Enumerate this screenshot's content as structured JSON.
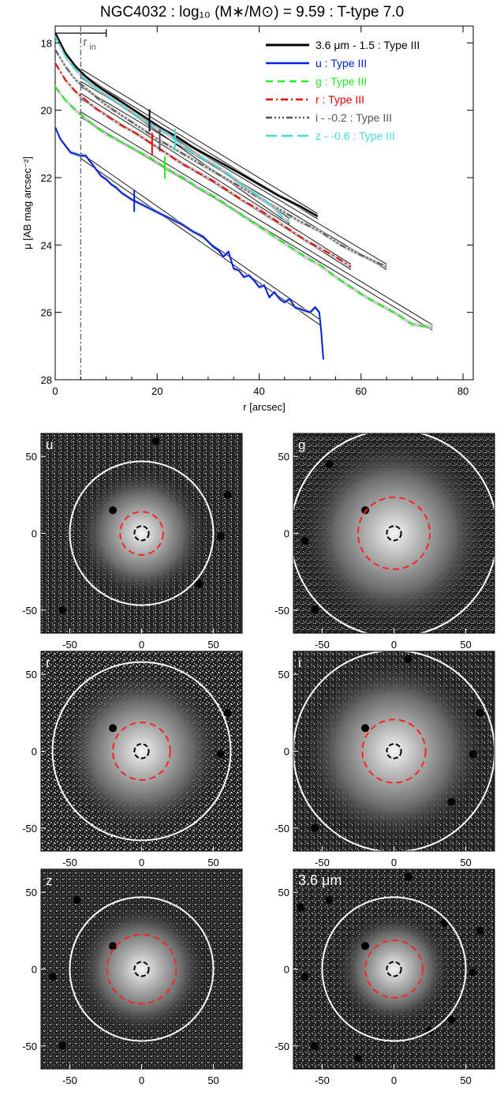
{
  "page_title": "NGC4032 : log₁₀ (M∗/M⊙) = 9.59 : T-type 7.0",
  "chart_data": [
    {
      "type": "line",
      "xlabel": "r [arcsec]",
      "ylabel": "μ [AB mag arcsec⁻²]",
      "xlim": [
        0,
        82
      ],
      "ylim": [
        28,
        17.5
      ],
      "y_inverted": true,
      "xticks": [
        0,
        20,
        40,
        60,
        80
      ],
      "yticks": [
        18,
        20,
        22,
        24,
        26,
        28
      ],
      "grid": false,
      "legend_position": "top-right",
      "r_in_label": "r",
      "r_in_subscript": "in",
      "r_in": 5,
      "series": [
        {
          "name": "3.6 μm - 1.5 : Type III",
          "color": "#000000",
          "dash": "solid",
          "x": [
            0,
            2,
            4,
            6,
            8,
            10,
            12,
            15,
            18,
            21,
            24,
            27,
            30,
            33,
            36,
            40,
            44,
            48,
            51.5
          ],
          "y": [
            17.7,
            18.3,
            18.7,
            19.0,
            19.25,
            19.45,
            19.65,
            19.95,
            20.25,
            20.55,
            20.8,
            21.1,
            21.35,
            21.6,
            21.85,
            22.2,
            22.55,
            22.85,
            23.15
          ],
          "break_x": 18.5,
          "fit_x": [
            5,
            51.5
          ]
        },
        {
          "name": "u : Type III",
          "color": "#0022dd",
          "dash": "solid",
          "x": [
            0,
            1,
            2,
            3,
            4,
            5,
            6,
            7,
            8,
            9,
            10,
            11,
            12,
            13,
            14,
            15,
            17,
            19,
            21,
            23,
            25,
            27,
            29,
            30,
            31,
            32,
            33,
            34,
            35,
            36,
            37,
            38,
            39,
            40,
            41,
            42,
            43,
            44,
            45,
            46,
            47,
            48,
            49,
            50,
            51,
            51.8,
            52.2,
            52.6
          ],
          "y": [
            20.5,
            20.85,
            21.05,
            21.25,
            21.3,
            21.35,
            21.35,
            21.55,
            21.75,
            21.95,
            22.05,
            22.2,
            22.3,
            22.45,
            22.55,
            22.65,
            22.8,
            22.95,
            23.1,
            23.25,
            23.4,
            23.6,
            23.75,
            23.9,
            24.05,
            24.15,
            24.35,
            24.2,
            24.7,
            24.75,
            24.95,
            24.9,
            25.05,
            25.25,
            25.2,
            25.55,
            25.4,
            25.6,
            25.7,
            25.6,
            25.85,
            25.9,
            25.95,
            26.0,
            25.85,
            26.0,
            26.6,
            27.4
          ],
          "break_x": 15.5,
          "fit_x": [
            5,
            52
          ]
        },
        {
          "name": "g : Type III",
          "color": "#22ee22",
          "dash": "dash",
          "x": [
            0,
            2,
            4,
            6,
            8,
            10,
            13,
            16,
            19,
            22,
            25,
            28,
            31,
            34,
            37,
            40,
            43,
            46,
            49,
            52,
            55,
            58,
            61,
            64,
            67,
            70,
            72,
            74
          ],
          "y": [
            19.3,
            19.7,
            20.0,
            20.25,
            20.5,
            20.7,
            20.95,
            21.2,
            21.45,
            21.75,
            22.0,
            22.3,
            22.55,
            22.85,
            23.15,
            23.45,
            23.75,
            24.05,
            24.35,
            24.6,
            24.95,
            25.25,
            25.55,
            25.8,
            26.05,
            26.35,
            26.4,
            26.45
          ],
          "break_x": 21.5,
          "fit_x": [
            5,
            74
          ]
        },
        {
          "name": "r : Type III",
          "color": "#ee0000",
          "dash": "dashdot",
          "x": [
            0,
            2,
            4,
            6,
            8,
            10,
            13,
            16,
            19,
            22,
            25,
            28,
            31,
            34,
            37,
            40,
            43,
            46,
            49,
            52,
            55,
            58
          ],
          "y": [
            18.6,
            19.1,
            19.45,
            19.7,
            19.95,
            20.15,
            20.45,
            20.7,
            21.0,
            21.3,
            21.6,
            21.85,
            22.1,
            22.4,
            22.7,
            22.95,
            23.25,
            23.55,
            23.85,
            24.1,
            24.35,
            24.65
          ],
          "break_x": 19,
          "fit_x": [
            5,
            58
          ]
        },
        {
          "name": "i - -0.2 : Type III",
          "color": "#555555",
          "dash": "dashdotdotdot",
          "x": [
            0,
            2,
            4,
            6,
            8,
            10,
            13,
            16,
            20,
            24,
            28,
            32,
            36,
            40,
            44,
            48,
            52,
            56,
            60,
            65
          ],
          "y": [
            18.2,
            18.7,
            19.1,
            19.35,
            19.6,
            19.85,
            20.15,
            20.45,
            20.85,
            21.2,
            21.55,
            21.9,
            22.25,
            22.6,
            22.95,
            23.3,
            23.6,
            24.0,
            24.3,
            24.65
          ],
          "break_x": 20.5,
          "fit_x": [
            5,
            65
          ]
        },
        {
          "name": "z - -0.6 : Type III",
          "color": "#44dddd",
          "dash": "longdash",
          "x": [
            0,
            2,
            4,
            6,
            8,
            10,
            13,
            16,
            19,
            22,
            25,
            28,
            31,
            34,
            37,
            40,
            43,
            45,
            46
          ],
          "y": [
            17.8,
            18.4,
            18.8,
            19.1,
            19.35,
            19.55,
            19.85,
            20.15,
            20.45,
            20.7,
            21.05,
            21.35,
            21.6,
            21.9,
            22.25,
            22.55,
            22.9,
            23.25,
            23.3
          ],
          "break_x": 23.5,
          "fit_x": [
            5,
            46
          ]
        }
      ]
    },
    {
      "type": "heatmap",
      "panels": [
        {
          "label": "u",
          "outer_radius": 50,
          "inner_radius": 15,
          "center_radius": 5
        },
        {
          "label": "g",
          "outer_radius": 72,
          "inner_radius": 25,
          "center_radius": 5
        },
        {
          "label": "r",
          "outer_radius": 62,
          "inner_radius": 20,
          "center_radius": 5
        },
        {
          "label": "i",
          "outer_radius": 70,
          "inner_radius": 22,
          "center_radius": 5
        },
        {
          "label": "z",
          "outer_radius": 50,
          "inner_radius": 24,
          "center_radius": 5
        },
        {
          "label": "3.6 μm",
          "outer_radius": 50,
          "inner_radius": 20,
          "center_radius": 5
        }
      ],
      "xlim": [
        -70,
        70
      ],
      "ylim": [
        -65,
        65
      ],
      "xticks": [
        -50,
        0,
        50
      ],
      "yticks": [
        50,
        0,
        -50
      ]
    }
  ]
}
